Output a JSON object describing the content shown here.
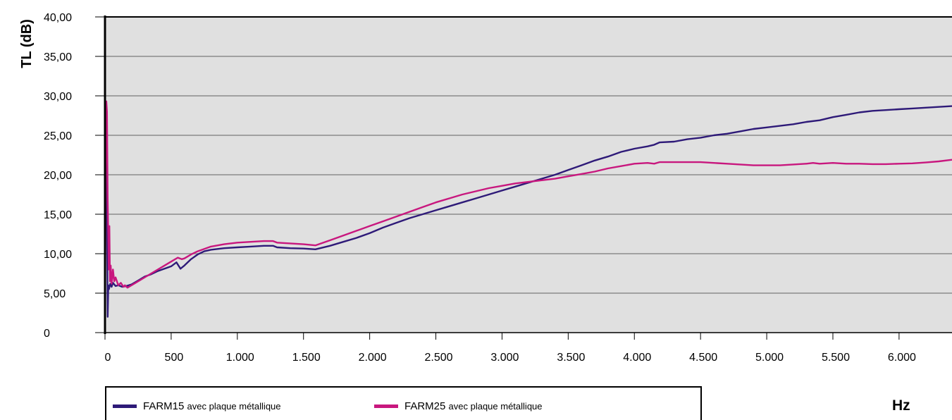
{
  "chart_data": {
    "type": "line",
    "ylabel": "TL (dB)",
    "xlabel": "Hz",
    "xlim": [
      0,
      6400
    ],
    "ylim": [
      0,
      40
    ],
    "x_ticks": [
      0,
      500,
      1000,
      1500,
      2000,
      2500,
      3000,
      3500,
      4000,
      4500,
      5000,
      5500,
      6000
    ],
    "x_tick_labels": [
      "0",
      "500",
      "1.000",
      "1.500",
      "2.000",
      "2.500",
      "3.000",
      "3.500",
      "4.000",
      "4.500",
      "5.000",
      "5.500",
      "6.000"
    ],
    "y_ticks": [
      0,
      5,
      10,
      15,
      20,
      25,
      30,
      35,
      40
    ],
    "y_tick_labels": [
      "0",
      "5,00",
      "10,00",
      "15,00",
      "20,00",
      "25,00",
      "30,00",
      "35,00",
      "40,00"
    ],
    "grid": "horizontal",
    "plot_background": "#e0e0e0",
    "legend_position": "bottom",
    "series": [
      {
        "name": "FARM15",
        "name_suffix": "avec plaque métallique",
        "color": "#2e1a78",
        "points": [
          [
            0,
            0
          ],
          [
            5,
            28
          ],
          [
            10,
            22
          ],
          [
            15,
            15
          ],
          [
            20,
            2
          ],
          [
            25,
            6
          ],
          [
            30,
            5.5
          ],
          [
            40,
            6.2
          ],
          [
            50,
            5.8
          ],
          [
            60,
            6.3
          ],
          [
            80,
            5.9
          ],
          [
            100,
            6.0
          ],
          [
            130,
            5.8
          ],
          [
            160,
            5.9
          ],
          [
            200,
            6.1
          ],
          [
            250,
            6.6
          ],
          [
            300,
            7.1
          ],
          [
            350,
            7.4
          ],
          [
            400,
            7.8
          ],
          [
            450,
            8.1
          ],
          [
            500,
            8.4
          ],
          [
            540,
            8.9
          ],
          [
            570,
            8.1
          ],
          [
            600,
            8.5
          ],
          [
            650,
            9.3
          ],
          [
            700,
            9.9
          ],
          [
            750,
            10.3
          ],
          [
            800,
            10.5
          ],
          [
            900,
            10.7
          ],
          [
            1000,
            10.8
          ],
          [
            1100,
            10.9
          ],
          [
            1200,
            11.0
          ],
          [
            1270,
            11.0
          ],
          [
            1300,
            10.8
          ],
          [
            1400,
            10.7
          ],
          [
            1500,
            10.65
          ],
          [
            1590,
            10.55
          ],
          [
            1700,
            11.0
          ],
          [
            1800,
            11.5
          ],
          [
            1900,
            12.0
          ],
          [
            2000,
            12.6
          ],
          [
            2100,
            13.3
          ],
          [
            2200,
            13.9
          ],
          [
            2300,
            14.5
          ],
          [
            2400,
            15.0
          ],
          [
            2500,
            15.5
          ],
          [
            2600,
            16.0
          ],
          [
            2700,
            16.5
          ],
          [
            2800,
            17.0
          ],
          [
            2900,
            17.5
          ],
          [
            3000,
            18.0
          ],
          [
            3100,
            18.5
          ],
          [
            3200,
            19.0
          ],
          [
            3300,
            19.5
          ],
          [
            3400,
            20.0
          ],
          [
            3500,
            20.6
          ],
          [
            3600,
            21.2
          ],
          [
            3700,
            21.8
          ],
          [
            3800,
            22.3
          ],
          [
            3900,
            22.9
          ],
          [
            4000,
            23.3
          ],
          [
            4100,
            23.6
          ],
          [
            4150,
            23.8
          ],
          [
            4190,
            24.1
          ],
          [
            4300,
            24.2
          ],
          [
            4400,
            24.5
          ],
          [
            4500,
            24.7
          ],
          [
            4600,
            25.0
          ],
          [
            4700,
            25.2
          ],
          [
            4800,
            25.5
          ],
          [
            4900,
            25.8
          ],
          [
            5000,
            26.0
          ],
          [
            5100,
            26.2
          ],
          [
            5200,
            26.4
          ],
          [
            5300,
            26.7
          ],
          [
            5400,
            26.9
          ],
          [
            5500,
            27.3
          ],
          [
            5600,
            27.6
          ],
          [
            5700,
            27.9
          ],
          [
            5800,
            28.1
          ],
          [
            5900,
            28.2
          ],
          [
            6000,
            28.3
          ],
          [
            6100,
            28.4
          ],
          [
            6200,
            28.5
          ],
          [
            6300,
            28.6
          ],
          [
            6400,
            28.7
          ]
        ]
      },
      {
        "name": "FARM25",
        "name_suffix": "avec plaque métallique",
        "color": "#c8177e",
        "points": [
          [
            0,
            0
          ],
          [
            5,
            21
          ],
          [
            10,
            29.3
          ],
          [
            15,
            28
          ],
          [
            20,
            17
          ],
          [
            25,
            12
          ],
          [
            28,
            8
          ],
          [
            33,
            13.5
          ],
          [
            38,
            6.5
          ],
          [
            43,
            8.5
          ],
          [
            50,
            6.2
          ],
          [
            60,
            8
          ],
          [
            70,
            6.5
          ],
          [
            80,
            7.0
          ],
          [
            100,
            6.0
          ],
          [
            120,
            6.3
          ],
          [
            140,
            5.8
          ],
          [
            150,
            6.0
          ],
          [
            170,
            5.7
          ],
          [
            200,
            6.0
          ],
          [
            250,
            6.5
          ],
          [
            300,
            7.0
          ],
          [
            350,
            7.5
          ],
          [
            400,
            8.0
          ],
          [
            450,
            8.5
          ],
          [
            500,
            9.0
          ],
          [
            550,
            9.5
          ],
          [
            580,
            9.3
          ],
          [
            600,
            9.4
          ],
          [
            650,
            9.9
          ],
          [
            700,
            10.3
          ],
          [
            750,
            10.6
          ],
          [
            800,
            10.9
          ],
          [
            900,
            11.2
          ],
          [
            1000,
            11.4
          ],
          [
            1100,
            11.5
          ],
          [
            1200,
            11.6
          ],
          [
            1270,
            11.6
          ],
          [
            1300,
            11.4
          ],
          [
            1400,
            11.3
          ],
          [
            1500,
            11.2
          ],
          [
            1590,
            11.05
          ],
          [
            1700,
            11.7
          ],
          [
            1800,
            12.3
          ],
          [
            1900,
            12.9
          ],
          [
            2000,
            13.5
          ],
          [
            2100,
            14.1
          ],
          [
            2200,
            14.7
          ],
          [
            2300,
            15.3
          ],
          [
            2400,
            15.9
          ],
          [
            2500,
            16.5
          ],
          [
            2600,
            17.0
          ],
          [
            2700,
            17.5
          ],
          [
            2800,
            17.9
          ],
          [
            2900,
            18.3
          ],
          [
            3000,
            18.6
          ],
          [
            3100,
            18.9
          ],
          [
            3200,
            19.1
          ],
          [
            3300,
            19.3
          ],
          [
            3400,
            19.5
          ],
          [
            3500,
            19.8
          ],
          [
            3600,
            20.1
          ],
          [
            3700,
            20.4
          ],
          [
            3800,
            20.8
          ],
          [
            3900,
            21.1
          ],
          [
            4000,
            21.4
          ],
          [
            4100,
            21.5
          ],
          [
            4150,
            21.4
          ],
          [
            4190,
            21.6
          ],
          [
            4300,
            21.6
          ],
          [
            4400,
            21.6
          ],
          [
            4500,
            21.6
          ],
          [
            4600,
            21.5
          ],
          [
            4700,
            21.4
          ],
          [
            4800,
            21.3
          ],
          [
            4900,
            21.2
          ],
          [
            5000,
            21.2
          ],
          [
            5100,
            21.2
          ],
          [
            5200,
            21.3
          ],
          [
            5300,
            21.4
          ],
          [
            5350,
            21.5
          ],
          [
            5400,
            21.4
          ],
          [
            5500,
            21.5
          ],
          [
            5600,
            21.4
          ],
          [
            5700,
            21.4
          ],
          [
            5800,
            21.35
          ],
          [
            5900,
            21.35
          ],
          [
            6000,
            21.4
          ],
          [
            6100,
            21.45
          ],
          [
            6200,
            21.55
          ],
          [
            6300,
            21.7
          ],
          [
            6400,
            21.9
          ]
        ]
      }
    ]
  }
}
